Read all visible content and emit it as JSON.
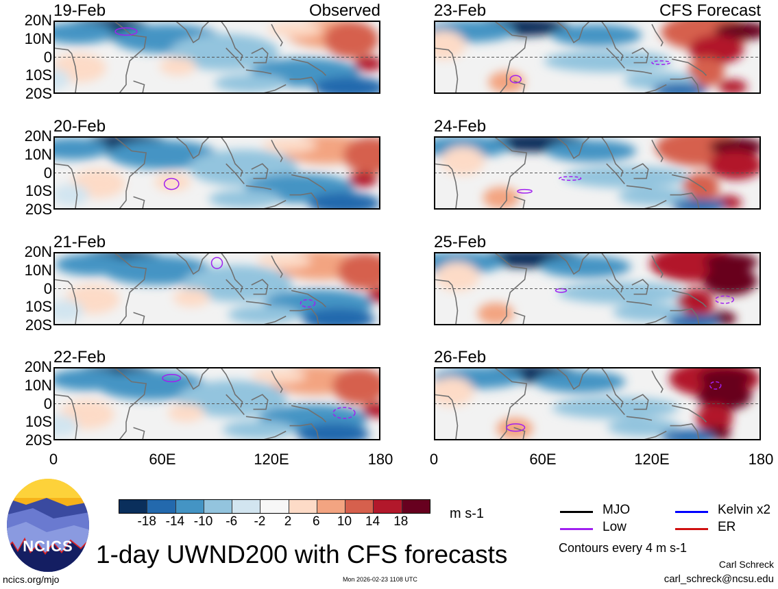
{
  "panels": [
    {
      "date": "19-Feb",
      "label": "Observed"
    },
    {
      "date": "20-Feb",
      "label": ""
    },
    {
      "date": "21-Feb",
      "label": ""
    },
    {
      "date": "22-Feb",
      "label": ""
    },
    {
      "date": "23-Feb",
      "label": "CFS Forecast"
    },
    {
      "date": "24-Feb",
      "label": ""
    },
    {
      "date": "25-Feb",
      "label": ""
    },
    {
      "date": "26-Feb",
      "label": ""
    }
  ],
  "y_axis": [
    "20N",
    "10N",
    "0",
    "10S",
    "20S"
  ],
  "x_axis": [
    "0",
    "60E",
    "120E",
    "180"
  ],
  "colorbar": {
    "colors": [
      "#0a2f5c",
      "#2369ad",
      "#4494c4",
      "#93c4de",
      "#d2e5f0",
      "#f7f7f7",
      "#fddbc7",
      "#f3a481",
      "#d6604d",
      "#b2182b",
      "#67001f"
    ],
    "ticks": [
      "-18",
      "-14",
      "-10",
      "-6",
      "-2",
      "2",
      "6",
      "10",
      "14",
      "18"
    ],
    "units": "m s-1"
  },
  "legend": [
    {
      "name": "MJO",
      "color": "#000000"
    },
    {
      "name": "Kelvin x2",
      "color": "#0000ff"
    },
    {
      "name": "Low",
      "color": "#a020f0"
    },
    {
      "name": "ER",
      "color": "#d01010"
    }
  ],
  "contour_note": "Contours every 4 m s-1",
  "title": "1-day UWND200 with CFS forecasts",
  "logo_text": "NCICS",
  "footer": {
    "url": "ncics.org/mjo",
    "timestamp": "Mon 2026-02-23 1108 UTC",
    "author": "Carl Schreck",
    "email": "carl_schreck@ncsu.edu"
  }
}
